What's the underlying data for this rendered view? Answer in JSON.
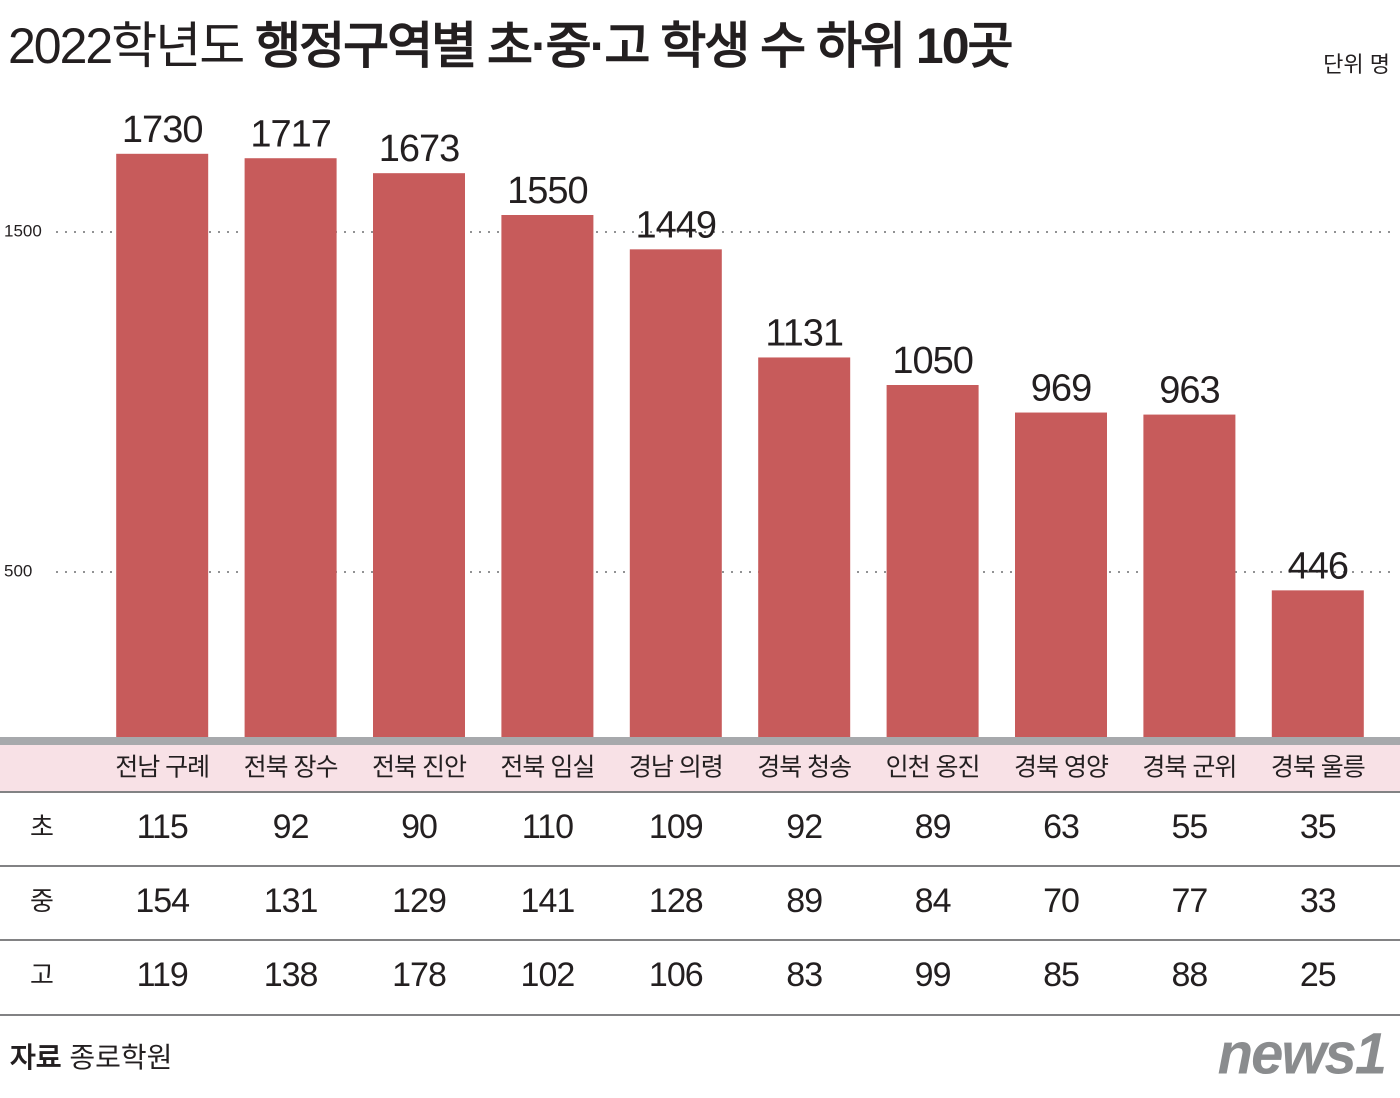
{
  "chart_data": {
    "type": "bar",
    "title_prefix": "2022학년도",
    "title": "행정구역별 초·중·고 학생 수 하위 10곳",
    "unit": "단위 명",
    "categories": [
      "전남 구례",
      "전북 장수",
      "전북 진안",
      "전북 임실",
      "경남 의령",
      "경북 청송",
      "인천 옹진",
      "경북 영양",
      "경북 군위",
      "경북 울릉"
    ],
    "values": [
      1730,
      1717,
      1673,
      1550,
      1449,
      1131,
      1050,
      969,
      963,
      446
    ],
    "color": "#c75b5b",
    "ylim": [
      0,
      1900
    ],
    "yticks": [
      500,
      1500
    ],
    "grid": true
  },
  "table": {
    "row_labels": [
      "초",
      "중",
      "고"
    ],
    "rows": [
      [
        115,
        92,
        90,
        110,
        109,
        92,
        89,
        63,
        55,
        35
      ],
      [
        154,
        131,
        129,
        141,
        128,
        89,
        84,
        70,
        77,
        33
      ],
      [
        119,
        138,
        178,
        102,
        106,
        83,
        99,
        85,
        88,
        25
      ]
    ]
  },
  "source_label": "자료",
  "source": "종로학원",
  "logo": "news1"
}
